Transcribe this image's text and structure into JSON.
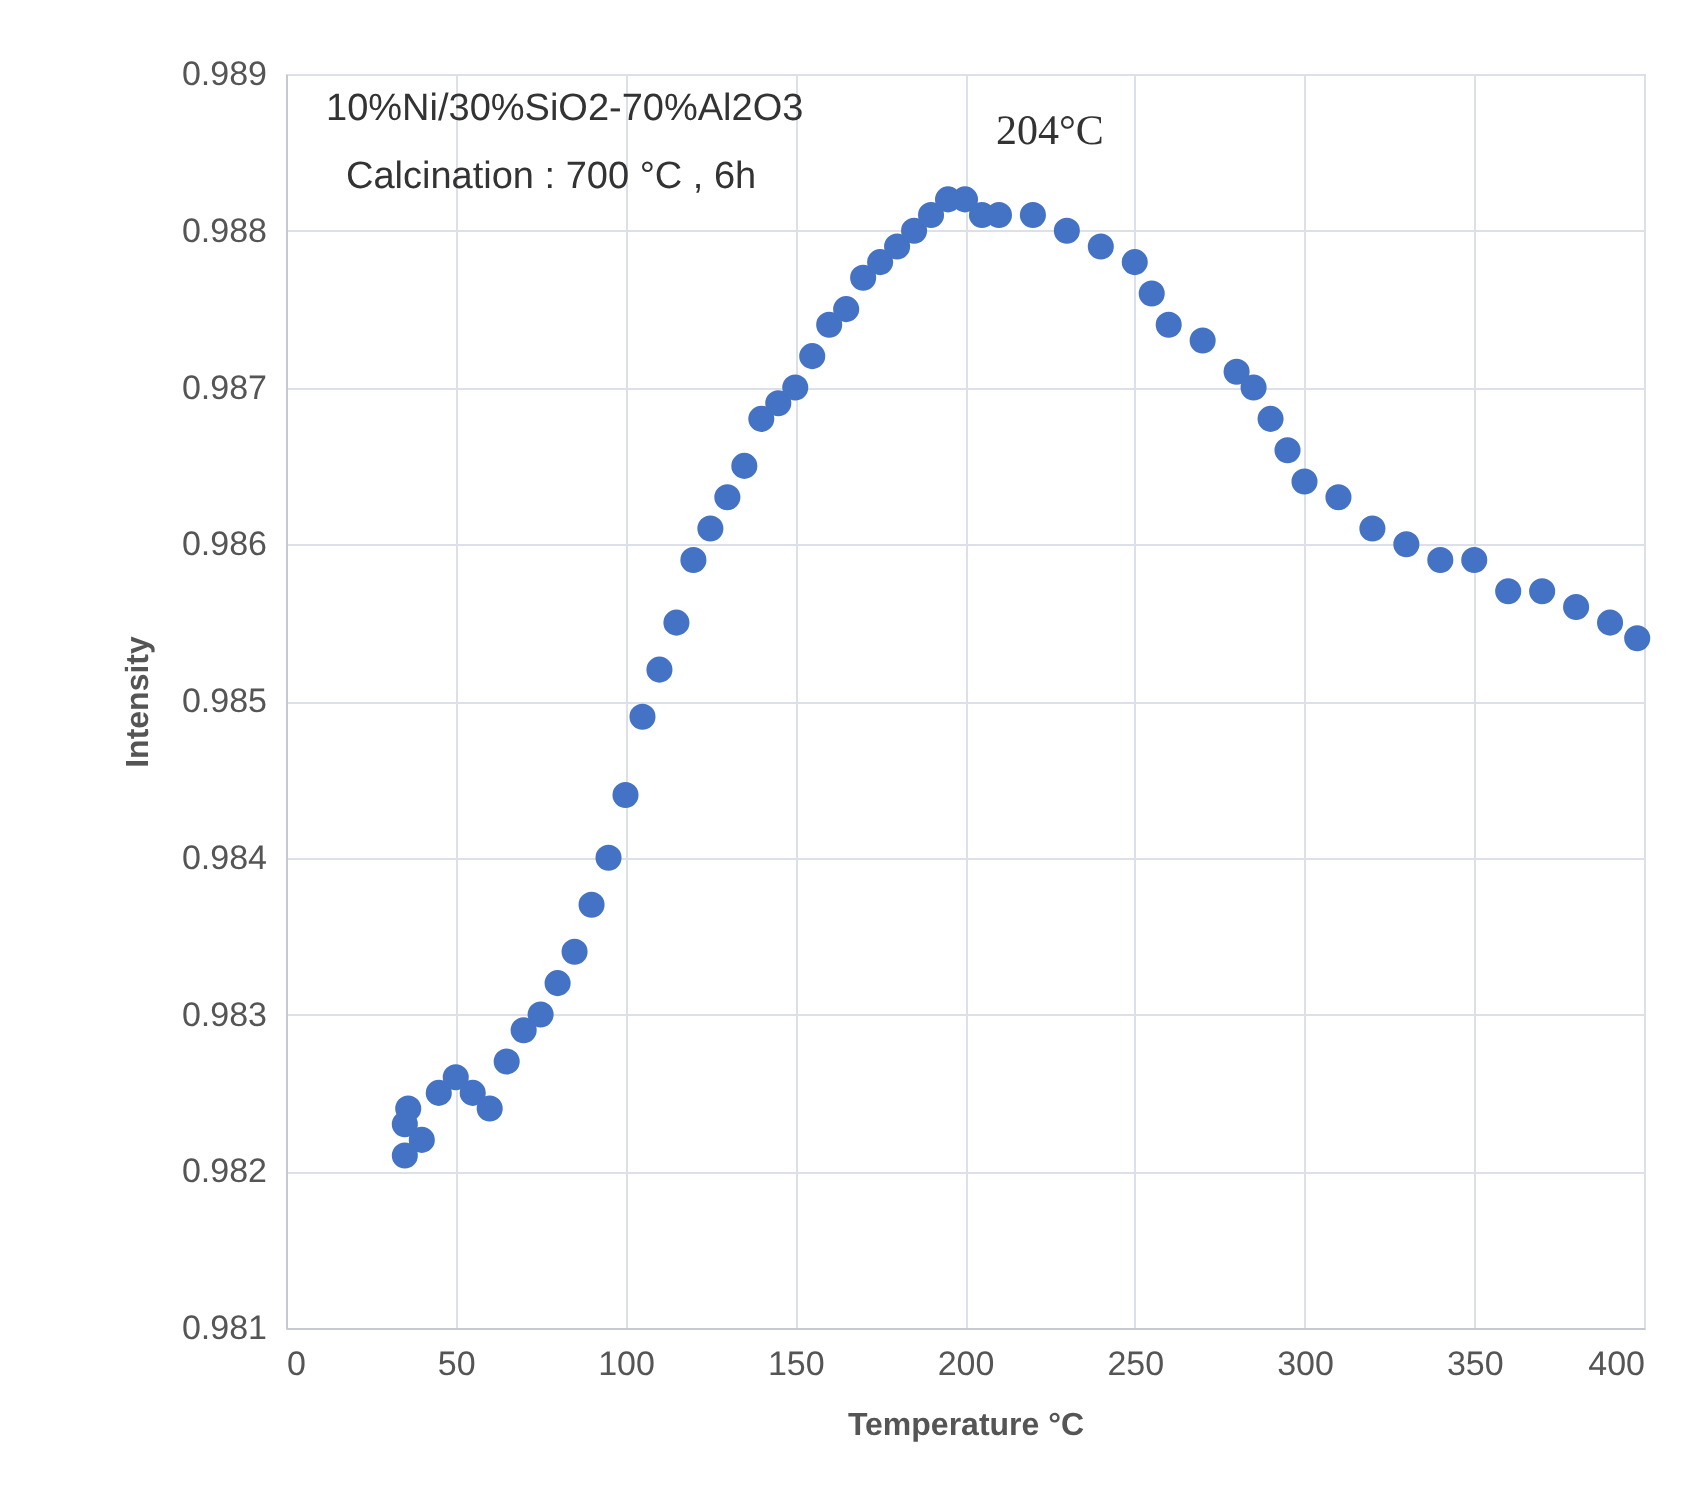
{
  "chart_data": {
    "type": "scatter",
    "xlabel": "Temperature °C",
    "ylabel": "Intensity",
    "annotations": [
      "10%Ni/30%SiO2-70%Al2O3",
      "Calcination : 700 °C , 6h",
      "204°C"
    ],
    "x": [
      35,
      35,
      36,
      40,
      45,
      50,
      55,
      60,
      65,
      70,
      75,
      80,
      85,
      90,
      95,
      100,
      105,
      110,
      115,
      120,
      125,
      130,
      135,
      140,
      145,
      150,
      155,
      160,
      165,
      170,
      175,
      180,
      185,
      190,
      195,
      200,
      205,
      210,
      220,
      230,
      240,
      250,
      255,
      260,
      270,
      280,
      285,
      290,
      295,
      300,
      310,
      320,
      330,
      340,
      350,
      360,
      370,
      380,
      390,
      398
    ],
    "series": [
      {
        "color": "#4472c4",
        "values": [
          0.9821,
          0.9823,
          0.9824,
          0.9822,
          0.9825,
          0.9826,
          0.9825,
          0.9824,
          0.9827,
          0.9829,
          0.983,
          0.9832,
          0.9834,
          0.9837,
          0.984,
          0.9844,
          0.9849,
          0.9852,
          0.9855,
          0.9859,
          0.9861,
          0.9863,
          0.9865,
          0.9868,
          0.9869,
          0.987,
          0.9872,
          0.9874,
          0.9875,
          0.9877,
          0.9878,
          0.9879,
          0.988,
          0.9881,
          0.9882,
          0.9882,
          0.9881,
          0.9881,
          0.9881,
          0.988,
          0.9879,
          0.9878,
          0.9876,
          0.9874,
          0.9873,
          0.9871,
          0.987,
          0.9868,
          0.9866,
          0.9864,
          0.9863,
          0.9861,
          0.986,
          0.9859,
          0.9859,
          0.9857,
          0.9857,
          0.9856,
          0.9855,
          0.9854
        ]
      }
    ],
    "xlim": [
      0,
      400
    ],
    "xticks": [
      0,
      50,
      100,
      150,
      200,
      250,
      300,
      350,
      400
    ],
    "ylim": [
      0.981,
      0.989
    ],
    "yticks": [
      0.981,
      0.982,
      0.983,
      0.984,
      0.985,
      0.986,
      0.987,
      0.988,
      0.989
    ],
    "grid": true,
    "marker": "circle"
  }
}
